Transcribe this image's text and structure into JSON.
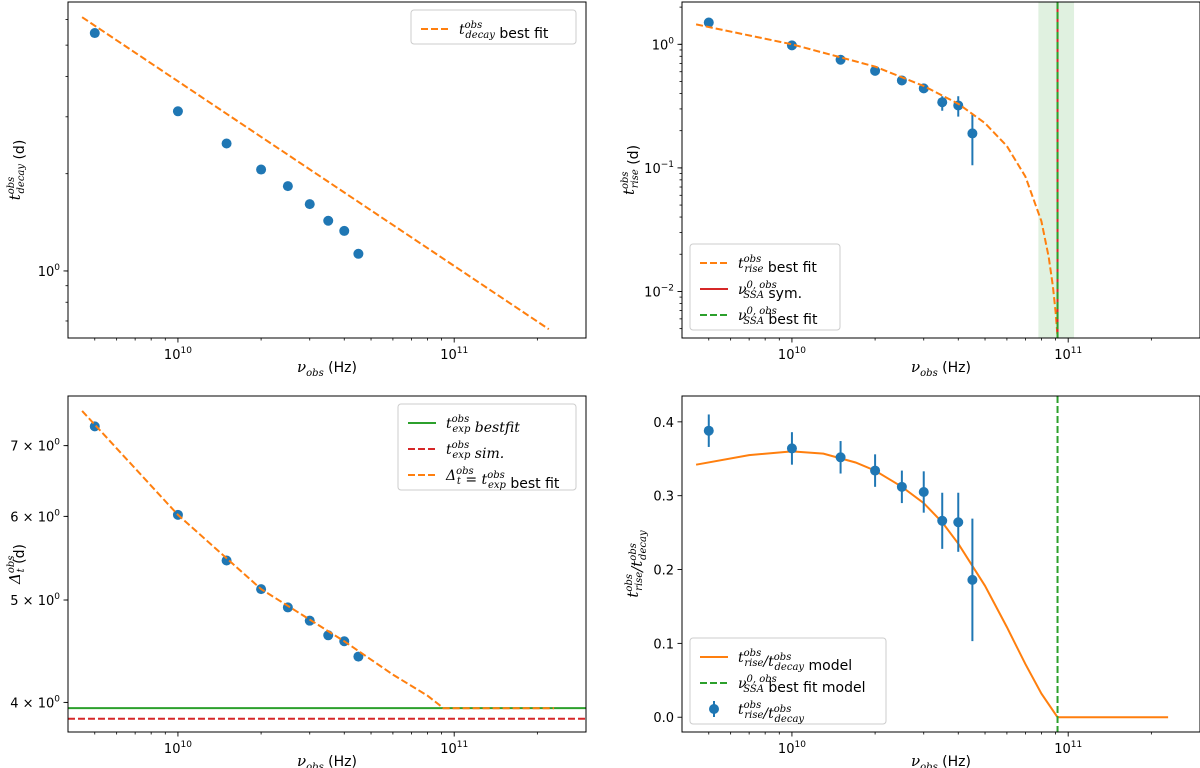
{
  "chart_data": [
    {
      "id": "p1",
      "type": "scatter",
      "xscale": "log",
      "yscale": "log",
      "xlim": [
        4000000000.0,
        300000000000.0
      ],
      "ylim": [
        0.62,
        6.8
      ],
      "xticks": [
        {
          "v": 10000000000.0,
          "base": "10",
          "exp": "10"
        },
        {
          "v": 100000000000.0,
          "base": "10",
          "exp": "11"
        }
      ],
      "yticks": [
        {
          "v": 1.0,
          "base": "10",
          "exp": "0"
        }
      ],
      "xlabel": {
        "main": "ν",
        "sub": "obs",
        "unit": " (Hz)"
      },
      "ylabel": {
        "main": "t",
        "sup": "obs",
        "sub": "decay",
        "unit": " (d)"
      },
      "series": [
        {
          "name": "observed",
          "kind": "points",
          "color": "#1f77b4",
          "x": [
            5000000000.0,
            10000000000.0,
            15000000000.0,
            20000000000.0,
            25000000000.0,
            30000000000.0,
            35000000000.0,
            40000000000.0,
            45000000000.0
          ],
          "y": [
            5.45,
            3.12,
            2.48,
            2.06,
            1.83,
            1.61,
            1.43,
            1.33,
            1.13
          ]
        },
        {
          "name": "best fit",
          "kind": "dashed",
          "color": "#ff7f0e",
          "x": [
            4500000000.0,
            220000000000.0
          ],
          "y": [
            6.1,
            0.66
          ]
        }
      ],
      "legend": {
        "position": "top-right",
        "entries": [
          {
            "style": "dashed",
            "color": "#ff7f0e",
            "main": "t",
            "sup": "obs",
            "sub": "decay",
            "text": " best fit"
          }
        ]
      }
    },
    {
      "id": "p2",
      "type": "scatter",
      "xscale": "log",
      "yscale": "log",
      "xlim": [
        4000000000.0,
        300000000000.0
      ],
      "ylim": [
        0.0042,
        2.2
      ],
      "xticks": [
        {
          "v": 10000000000.0,
          "base": "10",
          "exp": "10"
        },
        {
          "v": 100000000000.0,
          "base": "10",
          "exp": "11"
        }
      ],
      "yticks": [
        {
          "v": 1,
          "base": "10",
          "exp": "0"
        },
        {
          "v": 0.1,
          "base": "10",
          "exp": "−1"
        },
        {
          "v": 0.01,
          "base": "10",
          "exp": "−2"
        }
      ],
      "xlabel": {
        "main": "ν",
        "sub": "obs",
        "unit": " (Hz)"
      },
      "ylabel": {
        "main": "t",
        "sup": "obs",
        "sub": "rise",
        "unit": " (d)"
      },
      "band": {
        "x0": 78000000000.0,
        "x1": 105000000000.0,
        "color": "#2ca02c",
        "opacity": 0.15
      },
      "series": [
        {
          "name": "observed",
          "kind": "points",
          "color": "#1f77b4",
          "x": [
            5000000000.0,
            10000000000.0,
            15000000000.0,
            20000000000.0,
            25000000000.0,
            30000000000.0,
            35000000000.0,
            40000000000.0,
            45000000000.0
          ],
          "y": [
            1.5,
            0.98,
            0.75,
            0.61,
            0.51,
            0.44,
            0.34,
            0.32,
            0.19
          ],
          "err_lo": [
            0,
            0,
            0,
            0,
            0,
            0,
            0.05,
            0.06,
            0.085
          ],
          "err_hi": [
            0,
            0,
            0,
            0,
            0,
            0,
            0.04,
            0.06,
            0.08
          ]
        },
        {
          "name": "best fit",
          "kind": "dashed",
          "color": "#ff7f0e",
          "x": [
            4500000000.0,
            10000000000.0,
            20000000000.0,
            30000000000.0,
            40000000000.0,
            50000000000.0,
            60000000000.0,
            70000000000.0,
            80000000000.0,
            85000000000.0,
            88000000000.0,
            90000000000.0,
            91000000000.0,
            91500000000.0
          ],
          "y": [
            1.45,
            1.0,
            0.66,
            0.46,
            0.33,
            0.23,
            0.15,
            0.085,
            0.037,
            0.019,
            0.011,
            0.0068,
            0.005,
            0.0043
          ]
        },
        {
          "name": "sym",
          "kind": "vline",
          "color": "#d62728",
          "x": 91500000000.0
        },
        {
          "name": "fit",
          "kind": "vline-dashed",
          "color": "#2ca02c",
          "x": 91500000000.0
        }
      ],
      "legend": {
        "position": "bottom-left",
        "entries": [
          {
            "style": "dashed",
            "color": "#ff7f0e",
            "main": "t",
            "sup": "obs",
            "sub": "rise",
            "text": " best  fit"
          },
          {
            "style": "solid",
            "color": "#d62728",
            "main": "ν",
            "sup": "0, obs",
            "sub": "SSA",
            "text": " sym."
          },
          {
            "style": "dashed",
            "color": "#2ca02c",
            "main": "ν",
            "sup": "0, obs",
            "sub": "SSA",
            "text": " best fit"
          }
        ]
      }
    },
    {
      "id": "p3",
      "type": "scatter",
      "xscale": "log",
      "yscale": "log",
      "xlim": [
        4000000000.0,
        300000000000.0
      ],
      "ylim": [
        3.75,
        7.8
      ],
      "xticks": [
        {
          "v": 10000000000.0,
          "base": "10",
          "exp": "10"
        },
        {
          "v": 100000000000.0,
          "base": "10",
          "exp": "11"
        }
      ],
      "yticks": [
        {
          "v": 7,
          "base": "7 × 10",
          "exp": "0"
        },
        {
          "v": 6,
          "base": "6 × 10",
          "exp": "0"
        },
        {
          "v": 5,
          "base": "5 × 10",
          "exp": "0"
        },
        {
          "v": 4,
          "base": "4 × 10",
          "exp": "0"
        }
      ],
      "xlabel": {
        "main": "ν",
        "sub": "obs",
        "unit": " (Hz)"
      },
      "ylabel": {
        "main": "Δ",
        "sup": "obs",
        "sub": "t",
        "unit": " (d)"
      },
      "series": [
        {
          "name": "observed",
          "kind": "points",
          "color": "#1f77b4",
          "x": [
            5000000000.0,
            10000000000.0,
            15000000000.0,
            20000000000.0,
            25000000000.0,
            30000000000.0,
            35000000000.0,
            40000000000.0,
            45000000000.0
          ],
          "y": [
            7.3,
            6.02,
            5.45,
            5.12,
            4.92,
            4.78,
            4.63,
            4.57,
            4.42
          ]
        },
        {
          "name": "t_exp best fit",
          "kind": "hline",
          "color": "#2ca02c",
          "y": 3.95
        },
        {
          "name": "t_exp sim",
          "kind": "hline-dashed",
          "color": "#d62728",
          "y": 3.86
        },
        {
          "name": "delta best fit",
          "kind": "dashed",
          "color": "#ff7f0e",
          "x": [
            4500000000.0,
            10000000000.0,
            20000000000.0,
            40000000000.0,
            60000000000.0,
            80000000000.0,
            91500000000.0,
            230000000000.0
          ],
          "y": [
            7.55,
            6.02,
            5.12,
            4.57,
            4.25,
            4.06,
            3.95,
            3.95
          ]
        }
      ],
      "legend": {
        "position": "top-right",
        "entries": [
          {
            "style": "solid",
            "color": "#2ca02c",
            "main": "t",
            "sup": "obs",
            "sub": "exp",
            "text": " bestfit",
            "italic": true
          },
          {
            "style": "dashed",
            "color": "#d62728",
            "main": "t",
            "sup": "obs",
            "sub": "exp",
            "text": " sim.",
            "italic": true
          },
          {
            "style": "dashed",
            "color": "#ff7f0e",
            "main": "Δ",
            "sub": "t",
            "text2main": " = t",
            "sup": "obs",
            "sub2": "exp",
            "text": " best fit"
          }
        ]
      }
    },
    {
      "id": "p4",
      "type": "line",
      "xscale": "log",
      "yscale": "linear",
      "xlim": [
        4000000000.0,
        300000000000.0
      ],
      "ylim": [
        -0.02,
        0.435
      ],
      "xticks": [
        {
          "v": 10000000000.0,
          "base": "10",
          "exp": "10"
        },
        {
          "v": 100000000000.0,
          "base": "10",
          "exp": "11"
        }
      ],
      "yticks": [
        {
          "v": 0.0,
          "label": "0.0"
        },
        {
          "v": 0.1,
          "label": "0.1"
        },
        {
          "v": 0.2,
          "label": "0.2"
        },
        {
          "v": 0.3,
          "label": "0.3"
        },
        {
          "v": 0.4,
          "label": "0.4"
        }
      ],
      "xlabel": {
        "main": "ν",
        "sub": "obs",
        "unit": " (Hz)"
      },
      "ylabel": {
        "main": "t",
        "sup": "obs",
        "sub": "rise",
        "slash": "/t",
        "sup2": "obs",
        "sub2": "decay"
      },
      "series": [
        {
          "name": "model",
          "kind": "solid",
          "color": "#ff7f0e",
          "x": [
            4500000000.0,
            7000000000.0,
            10000000000.0,
            13000000000.0,
            17000000000.0,
            20000000000.0,
            25000000000.0,
            30000000000.0,
            35000000000.0,
            40000000000.0,
            50000000000.0,
            60000000000.0,
            70000000000.0,
            80000000000.0,
            91500000000.0,
            230000000000.0
          ],
          "y": [
            0.342,
            0.355,
            0.36,
            0.357,
            0.345,
            0.334,
            0.312,
            0.29,
            0.264,
            0.235,
            0.178,
            0.122,
            0.072,
            0.032,
            0.0,
            0.0
          ]
        },
        {
          "name": "best fit model",
          "kind": "vline-dashed",
          "color": "#2ca02c",
          "x": 91500000000.0
        },
        {
          "name": "observed",
          "kind": "points",
          "color": "#1f77b4",
          "x": [
            5000000000.0,
            10000000000.0,
            15000000000.0,
            20000000000.0,
            25000000000.0,
            30000000000.0,
            35000000000.0,
            40000000000.0,
            45000000000.0
          ],
          "y": [
            0.388,
            0.364,
            0.352,
            0.334,
            0.312,
            0.305,
            0.266,
            0.264,
            0.186
          ],
          "err_lo": [
            0.022,
            0.022,
            0.022,
            0.022,
            0.022,
            0.028,
            0.038,
            0.04,
            0.083
          ],
          "err_hi": [
            0.022,
            0.022,
            0.022,
            0.022,
            0.022,
            0.028,
            0.038,
            0.04,
            0.083
          ]
        }
      ],
      "legend": {
        "position": "bottom-left",
        "entries": [
          {
            "style": "solid",
            "color": "#ff7f0e",
            "main": "t",
            "sup": "obs",
            "sub": "rise",
            "slash": "/t",
            "sup2": "obs",
            "sub2": "decay",
            "text": " model"
          },
          {
            "style": "dashed",
            "color": "#2ca02c",
            "main": "ν",
            "sup": "0, obs",
            "sub": "SSA",
            "text": "  best fit  model"
          },
          {
            "style": "errpoint",
            "color": "#1f77b4",
            "main": "t",
            "sup": "obs",
            "sub": "rise",
            "slash": "/t",
            "sup2": "obs",
            "sub2": "decay",
            "text": ""
          }
        ]
      }
    }
  ]
}
